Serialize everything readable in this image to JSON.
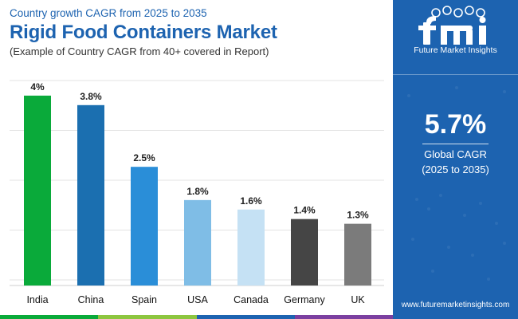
{
  "header": {
    "subtitle": "Country growth CAGR from 2025 to 2035",
    "title": "Rigid Food Containers Market",
    "note": "(Example of Country CAGR from 40+ covered in Report)"
  },
  "chart_data": {
    "type": "bar",
    "categories": [
      "India",
      "China",
      "Spain",
      "USA",
      "Canada",
      "Germany",
      "UK"
    ],
    "values": [
      4.0,
      3.8,
      2.5,
      1.8,
      1.6,
      1.4,
      1.3
    ],
    "value_labels": [
      "4%",
      "3.8%",
      "2.5%",
      "1.8%",
      "1.6%",
      "1.4%",
      "1.3%"
    ],
    "colors": [
      "#0aaa3a",
      "#1b6fb0",
      "#2a8ed8",
      "#7fbde6",
      "#c5e1f4",
      "#454545",
      "#7b7b7b"
    ],
    "ylim": [
      0,
      4.2
    ],
    "grid": true,
    "title": "",
    "xlabel": "",
    "ylabel": ""
  },
  "sidebar": {
    "logo_text": "Future Market Insights",
    "cagr_value": "5.7%",
    "cagr_label": "Global CAGR",
    "cagr_period": "(2025 to 2035)",
    "website": "www.futuremarketinsights.com"
  },
  "colors": {
    "brand": "#1d63b0",
    "strip": [
      "#0aaa3a",
      "#8dc63f",
      "#1d63b0",
      "#7b3fa0"
    ]
  }
}
